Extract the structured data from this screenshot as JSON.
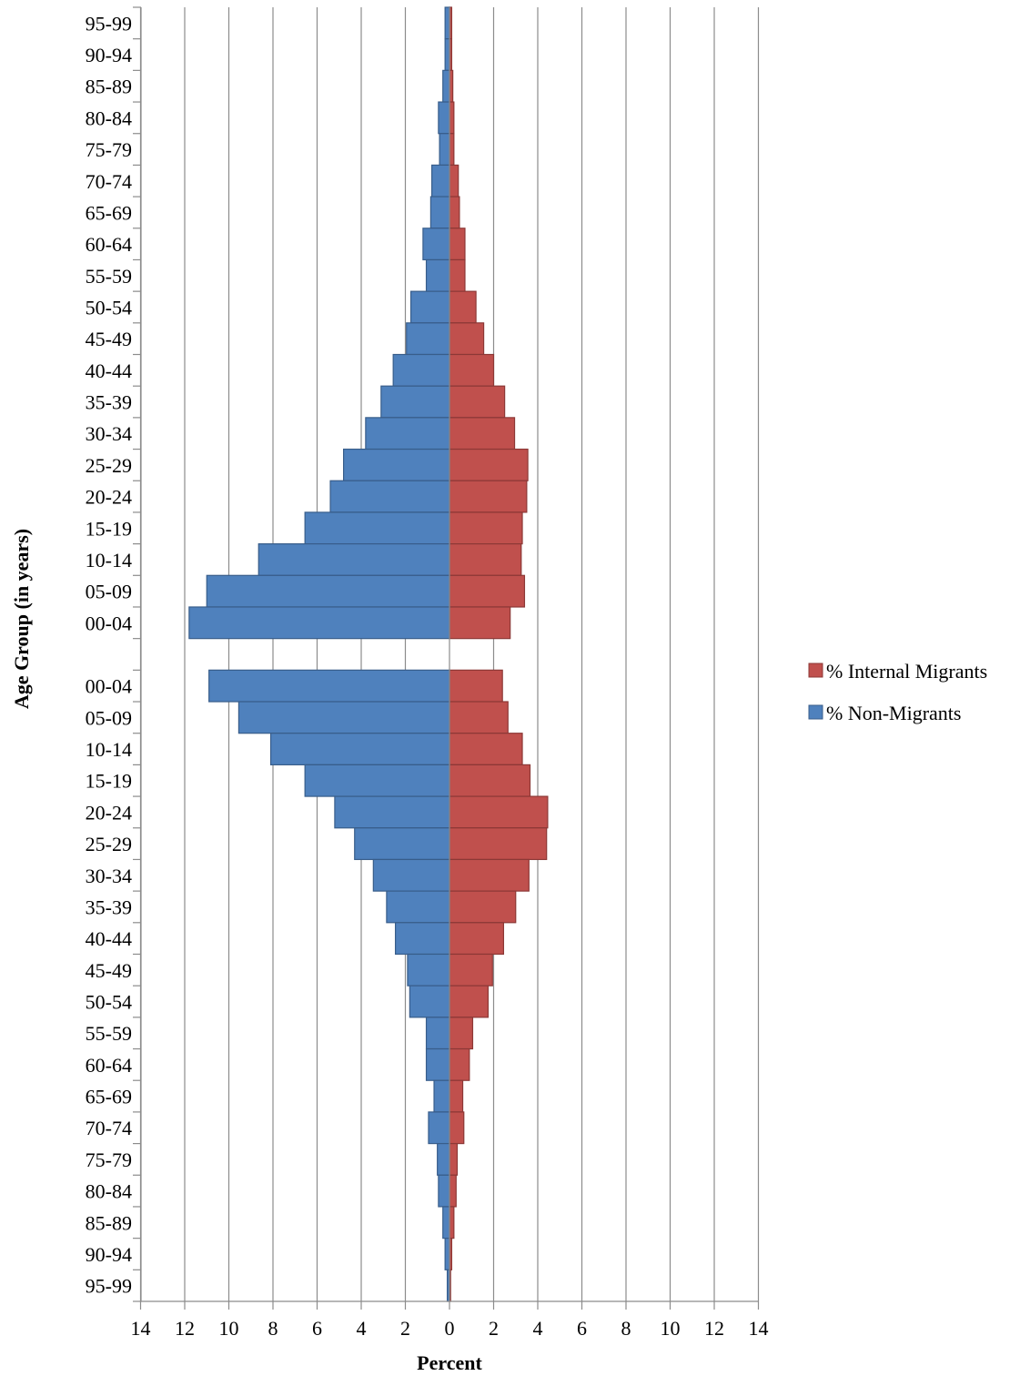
{
  "chart_data": {
    "type": "bar",
    "orientation": "horizontal",
    "xlabel": "Percent",
    "ylabel": "Age Group (in years)",
    "xlim": [
      -14,
      14
    ],
    "xticks": [
      -14,
      -12,
      -10,
      -8,
      -6,
      -4,
      -2,
      0,
      2,
      4,
      6,
      8,
      10,
      12,
      14
    ],
    "xtick_labels": [
      "14",
      "12",
      "10",
      "8",
      "6",
      "4",
      "2",
      "0",
      "2",
      "4",
      "6",
      "8",
      "10",
      "12",
      "14"
    ],
    "grid": "vertical",
    "legend": "right",
    "colors": {
      "internal": "#C0504D",
      "internal_edge": "#8C3836",
      "non": "#4F81BD",
      "non_edge": "#385D8A",
      "grid": "#8C8C8C"
    },
    "categories": [
      "95-99",
      "90-94",
      "85-89",
      "80-84",
      "75-79",
      "70-74",
      "65-69",
      "60-64",
      "55-59",
      "50-54",
      "45-49",
      "40-44",
      "35-39",
      "30-34",
      "25-29",
      "20-24",
      "15-19",
      "10-14",
      "05-09",
      "00-04",
      "",
      "00-04",
      "05-09",
      "10-14",
      "15-19",
      "20-24",
      "25-29",
      "30-34",
      "35-39",
      "40-44",
      "45-49",
      "50-54",
      "55-59",
      "60-64",
      "65-69",
      "70-74",
      "75-79",
      "80-84",
      "85-89",
      "90-94",
      "95-99"
    ],
    "series": [
      {
        "name": "% Internal Migrants",
        "values": [
          0.1,
          0.1,
          0.15,
          0.2,
          0.2,
          0.4,
          0.45,
          0.7,
          0.7,
          1.2,
          1.55,
          2.0,
          2.5,
          2.95,
          3.55,
          3.5,
          3.3,
          3.25,
          3.4,
          2.75,
          null,
          2.4,
          2.65,
          3.3,
          3.65,
          4.45,
          4.4,
          3.6,
          3.0,
          2.45,
          1.95,
          1.75,
          1.05,
          0.9,
          0.6,
          0.65,
          0.35,
          0.3,
          0.2,
          0.1,
          0.05
        ]
      },
      {
        "name": "% Non-Migrants",
        "values": [
          -0.2,
          -0.2,
          -0.3,
          -0.5,
          -0.45,
          -0.8,
          -0.85,
          -1.2,
          -1.05,
          -1.75,
          -1.95,
          -2.55,
          -3.1,
          -3.8,
          -4.8,
          -5.4,
          -6.55,
          -8.65,
          -11.0,
          -11.8,
          null,
          -10.9,
          -9.55,
          -8.1,
          -6.55,
          -5.2,
          -4.3,
          -3.45,
          -2.85,
          -2.45,
          -1.9,
          -1.8,
          -1.05,
          -1.05,
          -0.7,
          -0.95,
          -0.55,
          -0.5,
          -0.3,
          -0.2,
          -0.1
        ]
      }
    ]
  }
}
